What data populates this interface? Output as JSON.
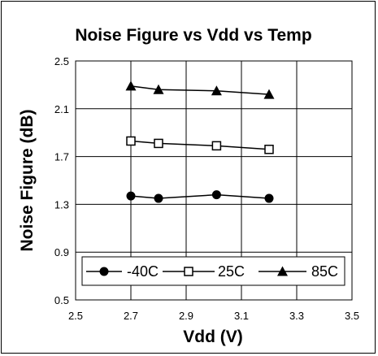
{
  "chart_data": {
    "type": "line",
    "title": "Noise Figure vs Vdd vs Temp",
    "xlabel": "Vdd (V)",
    "ylabel": "Noise Figure (dB)",
    "xlim": [
      2.5,
      3.5
    ],
    "ylim": [
      0.5,
      2.5
    ],
    "xticks": [
      2.5,
      2.7,
      2.9,
      3.1,
      3.3,
      3.5
    ],
    "yticks": [
      0.5,
      0.9,
      1.3,
      1.7,
      2.1,
      2.5
    ],
    "xtick_labels": [
      "2.5",
      "2.7",
      "2.9",
      "3.1",
      "3.3",
      "3.5"
    ],
    "ytick_labels": [
      "0.5",
      "0.9",
      "1.3",
      "1.7",
      "2.1",
      "2.5"
    ],
    "grid": true,
    "legend_position": "bottom",
    "series": [
      {
        "name": "-40C",
        "marker": "circle",
        "x": [
          2.7,
          2.8,
          3.01,
          3.2
        ],
        "values": [
          1.37,
          1.35,
          1.38,
          1.35
        ]
      },
      {
        "name": "25C",
        "marker": "square",
        "x": [
          2.7,
          2.8,
          3.01,
          3.2
        ],
        "values": [
          1.83,
          1.81,
          1.79,
          1.76
        ]
      },
      {
        "name": "85C",
        "marker": "triangle",
        "x": [
          2.7,
          2.8,
          3.01,
          3.2
        ],
        "values": [
          2.29,
          2.26,
          2.25,
          2.22
        ]
      }
    ],
    "colors": {
      "line": "#000000",
      "grid": "#000000",
      "background": "#ffffff"
    }
  }
}
